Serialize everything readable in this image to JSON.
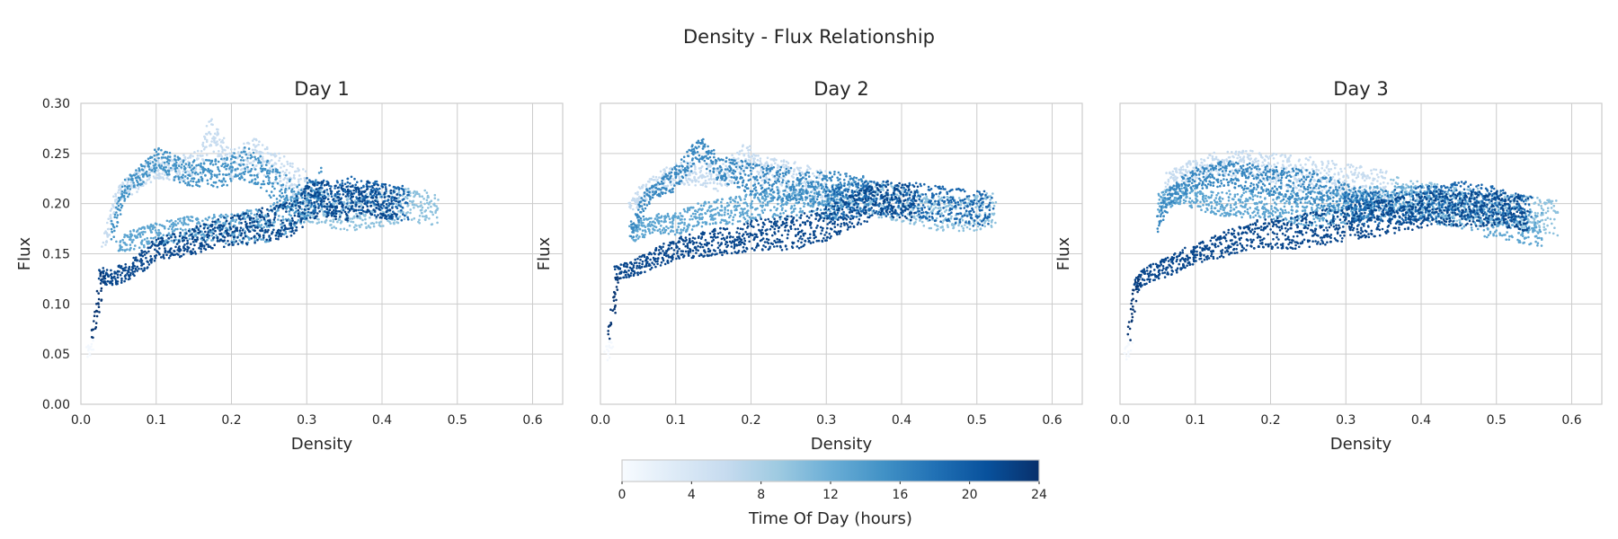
{
  "chart_data": {
    "type": "scatter",
    "title": "Density - Flux Relationship",
    "x_ticks": [
      "0.0",
      "0.1",
      "0.2",
      "0.3",
      "0.4",
      "0.5",
      "0.6"
    ],
    "y_ticks": [
      "0.00",
      "0.05",
      "0.10",
      "0.15",
      "0.20",
      "0.25",
      "0.30"
    ],
    "xlim": [
      0,
      0.64
    ],
    "ylim": [
      0,
      0.3
    ],
    "grid": true,
    "colormap": "Blues",
    "colorbar": {
      "label": "Time Of Day (hours)",
      "range": [
        0,
        24
      ],
      "ticks": [
        "0",
        "4",
        "8",
        "12",
        "16",
        "20",
        "24"
      ],
      "colors": [
        "#f7fbff",
        "#deebf7",
        "#c6dbef",
        "#9ecae1",
        "#6baed6",
        "#4292c6",
        "#2171b5",
        "#08519c",
        "#08306b"
      ]
    },
    "panels": [
      {
        "title": "Day 1",
        "xlabel": "Density",
        "ylabel": "Flux",
        "series": [
          {
            "hour": 0.5,
            "x": [
              0.008,
              0.012,
              0.015
            ],
            "y": [
              0.05,
              0.055,
              0.06
            ]
          },
          {
            "hour": 6,
            "x": [
              0.03,
              0.05,
              0.08,
              0.1,
              0.13,
              0.16,
              0.17,
              0.2,
              0.23,
              0.26,
              0.3
            ],
            "y": [
              0.16,
              0.21,
              0.225,
              0.235,
              0.235,
              0.24,
              0.275,
              0.24,
              0.25,
              0.235,
              0.215
            ]
          },
          {
            "hour": 10,
            "x": [
              0.3,
              0.35,
              0.4,
              0.44,
              0.46,
              0.475
            ],
            "y": [
              0.2,
              0.19,
              0.195,
              0.2,
              0.195,
              0.19
            ]
          },
          {
            "hour": 13,
            "x": [
              0.05,
              0.1,
              0.15,
              0.2,
              0.25,
              0.28,
              0.3
            ],
            "y": [
              0.16,
              0.17,
              0.175,
              0.175,
              0.18,
              0.19,
              0.2
            ]
          },
          {
            "hour": 15,
            "x": [
              0.04,
              0.06,
              0.09,
              0.1,
              0.14,
              0.18,
              0.22,
              0.25,
              0.28,
              0.3,
              0.32
            ],
            "y": [
              0.17,
              0.215,
              0.235,
              0.245,
              0.23,
              0.23,
              0.24,
              0.225,
              0.205,
              0.2,
              0.225
            ]
          },
          {
            "hour": 19,
            "x": [
              0.3,
              0.33,
              0.36,
              0.39,
              0.42,
              0.435
            ],
            "y": [
              0.21,
              0.205,
              0.21,
              0.205,
              0.2,
              0.2
            ]
          },
          {
            "hour": 22,
            "x": [
              0.025,
              0.04,
              0.07,
              0.1,
              0.14,
              0.18,
              0.22,
              0.25,
              0.28,
              0.3,
              0.32,
              0.35,
              0.38,
              0.42
            ],
            "y": [
              0.13,
              0.125,
              0.135,
              0.155,
              0.16,
              0.17,
              0.175,
              0.18,
              0.185,
              0.2,
              0.205,
              0.2,
              0.205,
              0.2
            ]
          },
          {
            "hour": 23.5,
            "x": [
              0.015,
              0.02,
              0.025,
              0.03
            ],
            "y": [
              0.07,
              0.09,
              0.11,
              0.13
            ]
          }
        ]
      },
      {
        "title": "Day 2",
        "xlabel": "Density",
        "ylabel": "Flux",
        "series": [
          {
            "hour": 0.5,
            "x": [
              0.008,
              0.012,
              0.015
            ],
            "y": [
              0.05,
              0.055,
              0.065
            ]
          },
          {
            "hour": 6,
            "x": [
              0.04,
              0.07,
              0.1,
              0.13,
              0.16,
              0.19,
              0.22,
              0.25,
              0.28,
              0.3
            ],
            "y": [
              0.2,
              0.22,
              0.23,
              0.23,
              0.225,
              0.245,
              0.23,
              0.225,
              0.22,
              0.215
            ]
          },
          {
            "hour": 10,
            "x": [
              0.3,
              0.35,
              0.4,
              0.45,
              0.5,
              0.525
            ],
            "y": [
              0.2,
              0.205,
              0.2,
              0.19,
              0.19,
              0.195
            ]
          },
          {
            "hour": 13,
            "x": [
              0.04,
              0.07,
              0.1,
              0.14,
              0.18,
              0.22,
              0.25,
              0.28,
              0.32
            ],
            "y": [
              0.17,
              0.18,
              0.18,
              0.19,
              0.195,
              0.2,
              0.2,
              0.205,
              0.2
            ]
          },
          {
            "hour": 16,
            "x": [
              0.04,
              0.06,
              0.09,
              0.11,
              0.13,
              0.16,
              0.2,
              0.24,
              0.28,
              0.32,
              0.36
            ],
            "y": [
              0.17,
              0.205,
              0.22,
              0.235,
              0.255,
              0.235,
              0.225,
              0.22,
              0.215,
              0.215,
              0.21
            ]
          },
          {
            "hour": 19,
            "x": [
              0.3,
              0.35,
              0.4,
              0.45,
              0.5,
              0.52
            ],
            "y": [
              0.2,
              0.205,
              0.205,
              0.2,
              0.195,
              0.195
            ]
          },
          {
            "hour": 22,
            "x": [
              0.02,
              0.04,
              0.07,
              0.1,
              0.14,
              0.18,
              0.22,
              0.26,
              0.3,
              0.34,
              0.38,
              0.42
            ],
            "y": [
              0.13,
              0.135,
              0.145,
              0.155,
              0.16,
              0.165,
              0.17,
              0.17,
              0.18,
              0.195,
              0.205,
              0.2
            ]
          },
          {
            "hour": 23.5,
            "x": [
              0.012,
              0.016,
              0.02,
              0.025
            ],
            "y": [
              0.07,
              0.09,
              0.11,
              0.13
            ]
          }
        ]
      },
      {
        "title": "Day 3",
        "xlabel": "Density",
        "ylabel": "Flux",
        "series": [
          {
            "hour": 0.5,
            "x": [
              0.008,
              0.012,
              0.015
            ],
            "y": [
              0.05,
              0.055,
              0.065
            ]
          },
          {
            "hour": 6,
            "x": [
              0.06,
              0.1,
              0.13,
              0.16,
              0.2,
              0.24,
              0.28,
              0.32,
              0.36
            ],
            "y": [
              0.22,
              0.235,
              0.24,
              0.24,
              0.235,
              0.23,
              0.225,
              0.22,
              0.215
            ]
          },
          {
            "hour": 10,
            "x": [
              0.36,
              0.4,
              0.45,
              0.5,
              0.55,
              0.58
            ],
            "y": [
              0.21,
              0.205,
              0.2,
              0.195,
              0.19,
              0.185
            ]
          },
          {
            "hour": 13,
            "x": [
              0.05,
              0.08,
              0.12,
              0.16,
              0.2,
              0.24,
              0.28,
              0.32,
              0.36,
              0.4,
              0.44,
              0.48,
              0.52,
              0.56
            ],
            "y": [
              0.2,
              0.21,
              0.2,
              0.2,
              0.2,
              0.195,
              0.195,
              0.2,
              0.2,
              0.2,
              0.195,
              0.185,
              0.18,
              0.175
            ]
          },
          {
            "hour": 16,
            "x": [
              0.05,
              0.07,
              0.1,
              0.14,
              0.18,
              0.22,
              0.26,
              0.3,
              0.34
            ],
            "y": [
              0.18,
              0.21,
              0.225,
              0.23,
              0.225,
              0.22,
              0.215,
              0.205,
              0.195
            ]
          },
          {
            "hour": 19,
            "x": [
              0.3,
              0.35,
              0.4,
              0.45,
              0.5,
              0.545
            ],
            "y": [
              0.195,
              0.195,
              0.2,
              0.205,
              0.2,
              0.19
            ]
          },
          {
            "hour": 22,
            "x": [
              0.02,
              0.04,
              0.07,
              0.1,
              0.14,
              0.18,
              0.22,
              0.26,
              0.3,
              0.34,
              0.38,
              0.42,
              0.46,
              0.5,
              0.54
            ],
            "y": [
              0.12,
              0.13,
              0.14,
              0.15,
              0.16,
              0.17,
              0.17,
              0.175,
              0.18,
              0.185,
              0.19,
              0.195,
              0.195,
              0.195,
              0.19
            ]
          },
          {
            "hour": 23.5,
            "x": [
              0.012,
              0.016,
              0.02,
              0.025
            ],
            "y": [
              0.07,
              0.09,
              0.11,
              0.125
            ]
          }
        ]
      }
    ]
  }
}
